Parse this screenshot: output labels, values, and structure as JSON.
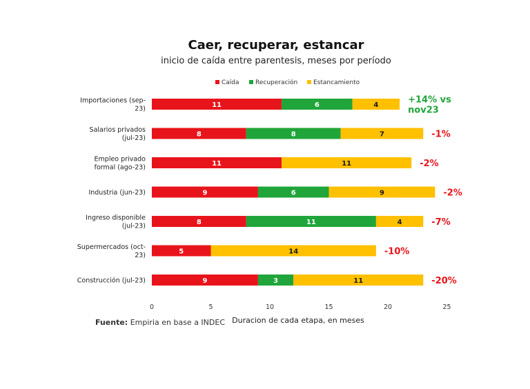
{
  "chart_data": {
    "type": "bar",
    "orientation": "horizontal",
    "stacked": true,
    "title": "Caer, recuperar, estancar",
    "subtitle": "inicio de caída entre parentesis, meses por período",
    "xlabel": "Duracion de cada etapa, en meses",
    "ylabel": "",
    "xlim": [
      0,
      25
    ],
    "xticks": [
      0,
      5,
      10,
      15,
      20,
      25
    ],
    "grid": false,
    "legend_position": "top-center",
    "categories": [
      [
        "Importaciones (sep-",
        "23)"
      ],
      [
        "Salarios privados",
        "(jul-23)"
      ],
      [
        "Empleo privado",
        "formal (ago-23)"
      ],
      [
        "Industria (jun-23)"
      ],
      [
        "Ingreso disponible",
        "(jul-23)"
      ],
      [
        "Supermercados (oct-",
        "23)"
      ],
      [
        "Construcción (jul-23)"
      ]
    ],
    "series": [
      {
        "name": "Caída",
        "color": "#e8141b",
        "values": [
          11,
          8,
          11,
          9,
          8,
          5,
          9
        ]
      },
      {
        "name": "Recuperación",
        "color": "#1fa53a",
        "values": [
          6,
          8,
          0,
          6,
          11,
          0,
          3
        ]
      },
      {
        "name": "Estancamiento",
        "color": "#ffc000",
        "values": [
          4,
          7,
          11,
          9,
          4,
          14,
          11
        ]
      }
    ],
    "annotations": [
      {
        "lines": [
          "+14% vs",
          "nov23"
        ],
        "color": "#1fa53a"
      },
      {
        "lines": [
          "-1%"
        ],
        "color": "#e8141b"
      },
      {
        "lines": [
          "-2%"
        ],
        "color": "#e8141b"
      },
      {
        "lines": [
          "-2%"
        ],
        "color": "#e8141b"
      },
      {
        "lines": [
          "-7%"
        ],
        "color": "#e8141b"
      },
      {
        "lines": [
          "-10%"
        ],
        "color": "#e8141b"
      },
      {
        "lines": [
          "-20%"
        ],
        "color": "#e8141b"
      }
    ]
  },
  "source": {
    "label": "Fuente:",
    "text": " Empiria en base a INDEC"
  }
}
